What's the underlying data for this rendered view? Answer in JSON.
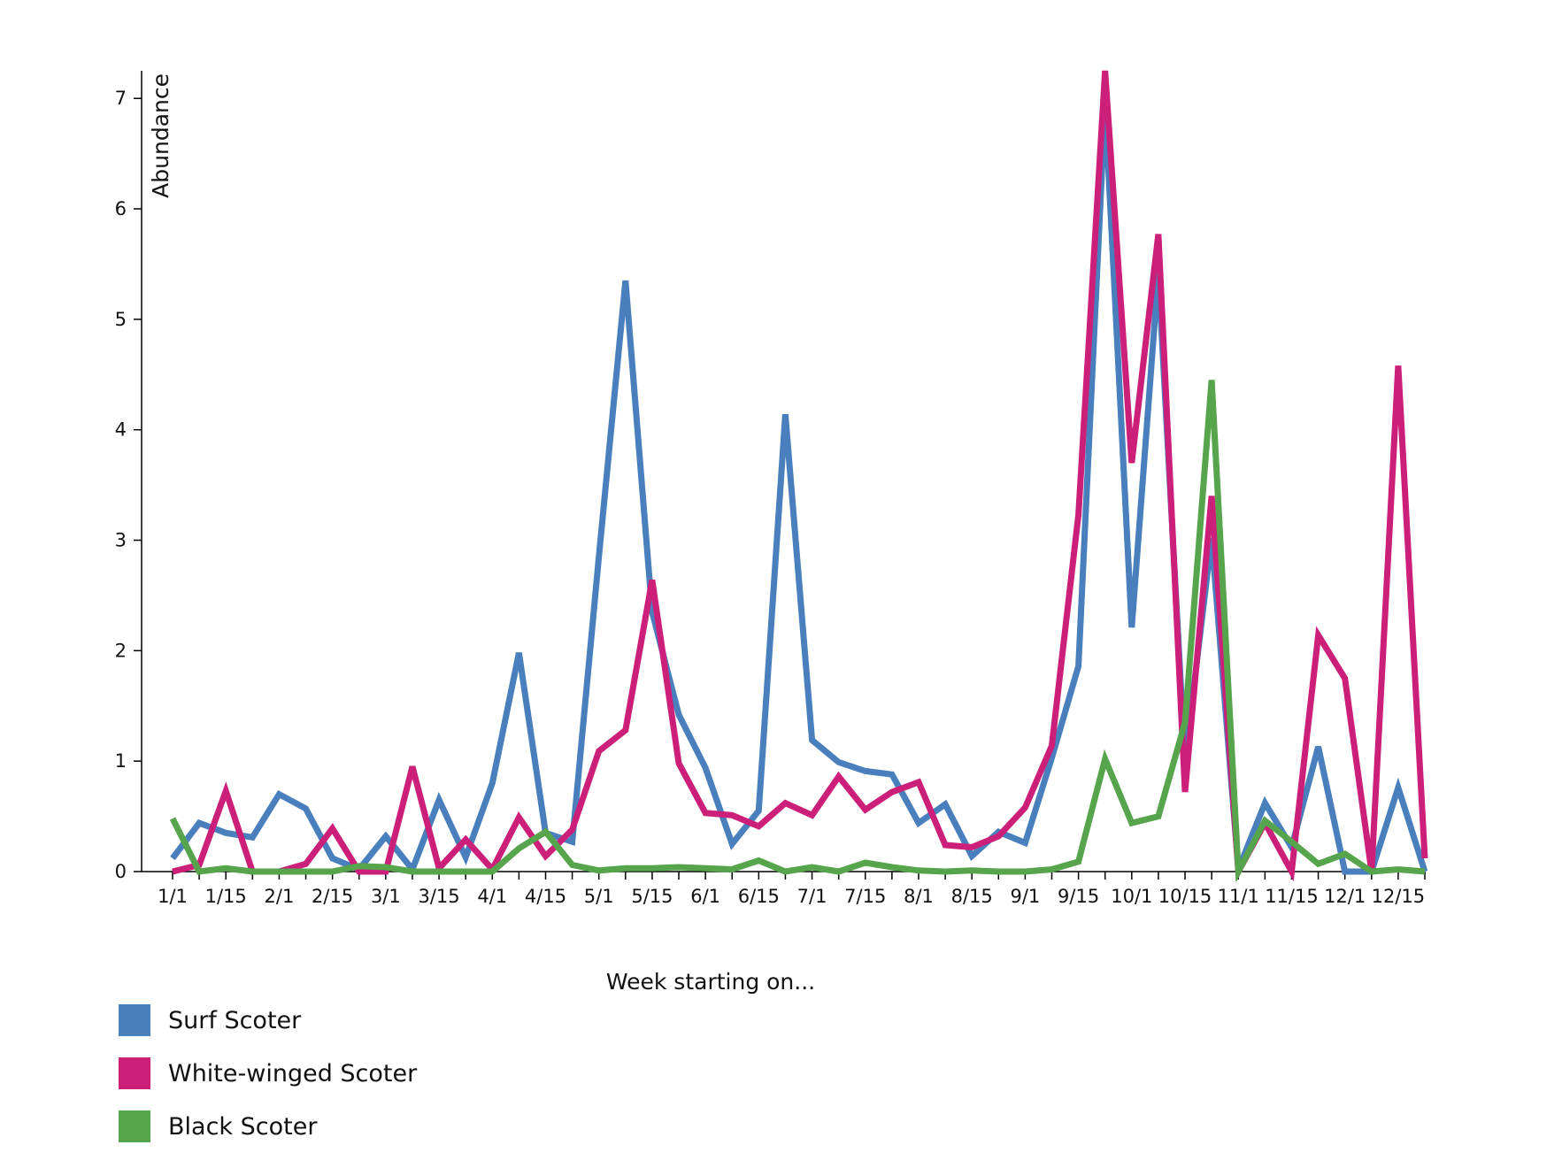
{
  "chart_data": {
    "type": "line",
    "xlabel": "Week starting on...",
    "ylabel": "Abundance",
    "ylim": [
      0,
      7.25
    ],
    "yticks": [
      0,
      1,
      2,
      3,
      4,
      5,
      6,
      7
    ],
    "xtick_labels": [
      "1/1",
      "1/15",
      "2/1",
      "2/15",
      "3/1",
      "3/15",
      "4/1",
      "4/15",
      "5/1",
      "5/15",
      "6/1",
      "6/15",
      "7/1",
      "7/15",
      "8/1",
      "8/15",
      "9/1",
      "9/15",
      "10/1",
      "10/15",
      "11/1",
      "11/15",
      "12/1",
      "12/15"
    ],
    "x": [
      "1/1",
      "1/8",
      "1/15",
      "1/22",
      "2/1",
      "2/8",
      "2/15",
      "2/22",
      "3/1",
      "3/8",
      "3/15",
      "3/22",
      "4/1",
      "4/8",
      "4/15",
      "4/22",
      "5/1",
      "5/8",
      "5/15",
      "5/22",
      "6/1",
      "6/8",
      "6/15",
      "6/22",
      "7/1",
      "7/8",
      "7/15",
      "7/22",
      "8/1",
      "8/8",
      "8/15",
      "8/22",
      "9/1",
      "9/8",
      "9/15",
      "9/22",
      "10/1",
      "10/8",
      "10/15",
      "10/22",
      "11/1",
      "11/8",
      "11/15",
      "11/22",
      "12/1",
      "12/8",
      "12/15",
      "12/22"
    ],
    "series": [
      {
        "name": "Surf Scoter",
        "color": "#4a7fbd",
        "values": [
          0.12,
          0.44,
          0.35,
          0.31,
          0.7,
          0.57,
          0.12,
          0.02,
          0.32,
          0.02,
          0.65,
          0.13,
          0.8,
          1.98,
          0.35,
          0.27,
          2.85,
          5.35,
          2.35,
          1.42,
          0.94,
          0.25,
          0.55,
          4.14,
          1.19,
          0.99,
          0.91,
          0.88,
          0.44,
          0.61,
          0.14,
          0.36,
          0.26,
          1.03,
          1.86,
          6.95,
          2.21,
          5.42,
          1.0,
          3.02,
          0.02,
          0.62,
          0.22,
          1.13,
          0.0,
          0.0,
          0.76,
          0.0
        ]
      },
      {
        "name": "White-winged Scoter",
        "color": "#cc1f7a",
        "values": [
          0.0,
          0.06,
          0.73,
          0.0,
          0.0,
          0.07,
          0.39,
          0.0,
          0.0,
          0.95,
          0.03,
          0.29,
          0.02,
          0.49,
          0.14,
          0.38,
          1.09,
          1.28,
          2.64,
          0.98,
          0.53,
          0.51,
          0.41,
          0.62,
          0.51,
          0.86,
          0.56,
          0.72,
          0.81,
          0.24,
          0.22,
          0.32,
          0.58,
          1.14,
          3.23,
          7.25,
          3.7,
          5.77,
          0.72,
          3.4,
          0.0,
          0.44,
          0.0,
          2.14,
          1.75,
          0.0,
          4.58,
          0.12
        ]
      },
      {
        "name": "Black Scoter",
        "color": "#56a44c",
        "values": [
          0.48,
          0.0,
          0.03,
          0.0,
          0.0,
          0.0,
          0.0,
          0.05,
          0.04,
          0.0,
          0.0,
          0.0,
          0.0,
          0.21,
          0.36,
          0.06,
          0.01,
          0.03,
          0.03,
          0.04,
          0.03,
          0.02,
          0.1,
          0.0,
          0.04,
          0.0,
          0.08,
          0.04,
          0.01,
          0.0,
          0.01,
          0.0,
          0.0,
          0.02,
          0.09,
          1.02,
          0.44,
          0.5,
          1.35,
          4.45,
          0.0,
          0.46,
          0.27,
          0.07,
          0.16,
          0.0,
          0.02,
          0.0
        ]
      }
    ],
    "legend_position": "bottom-left",
    "grid": false
  }
}
